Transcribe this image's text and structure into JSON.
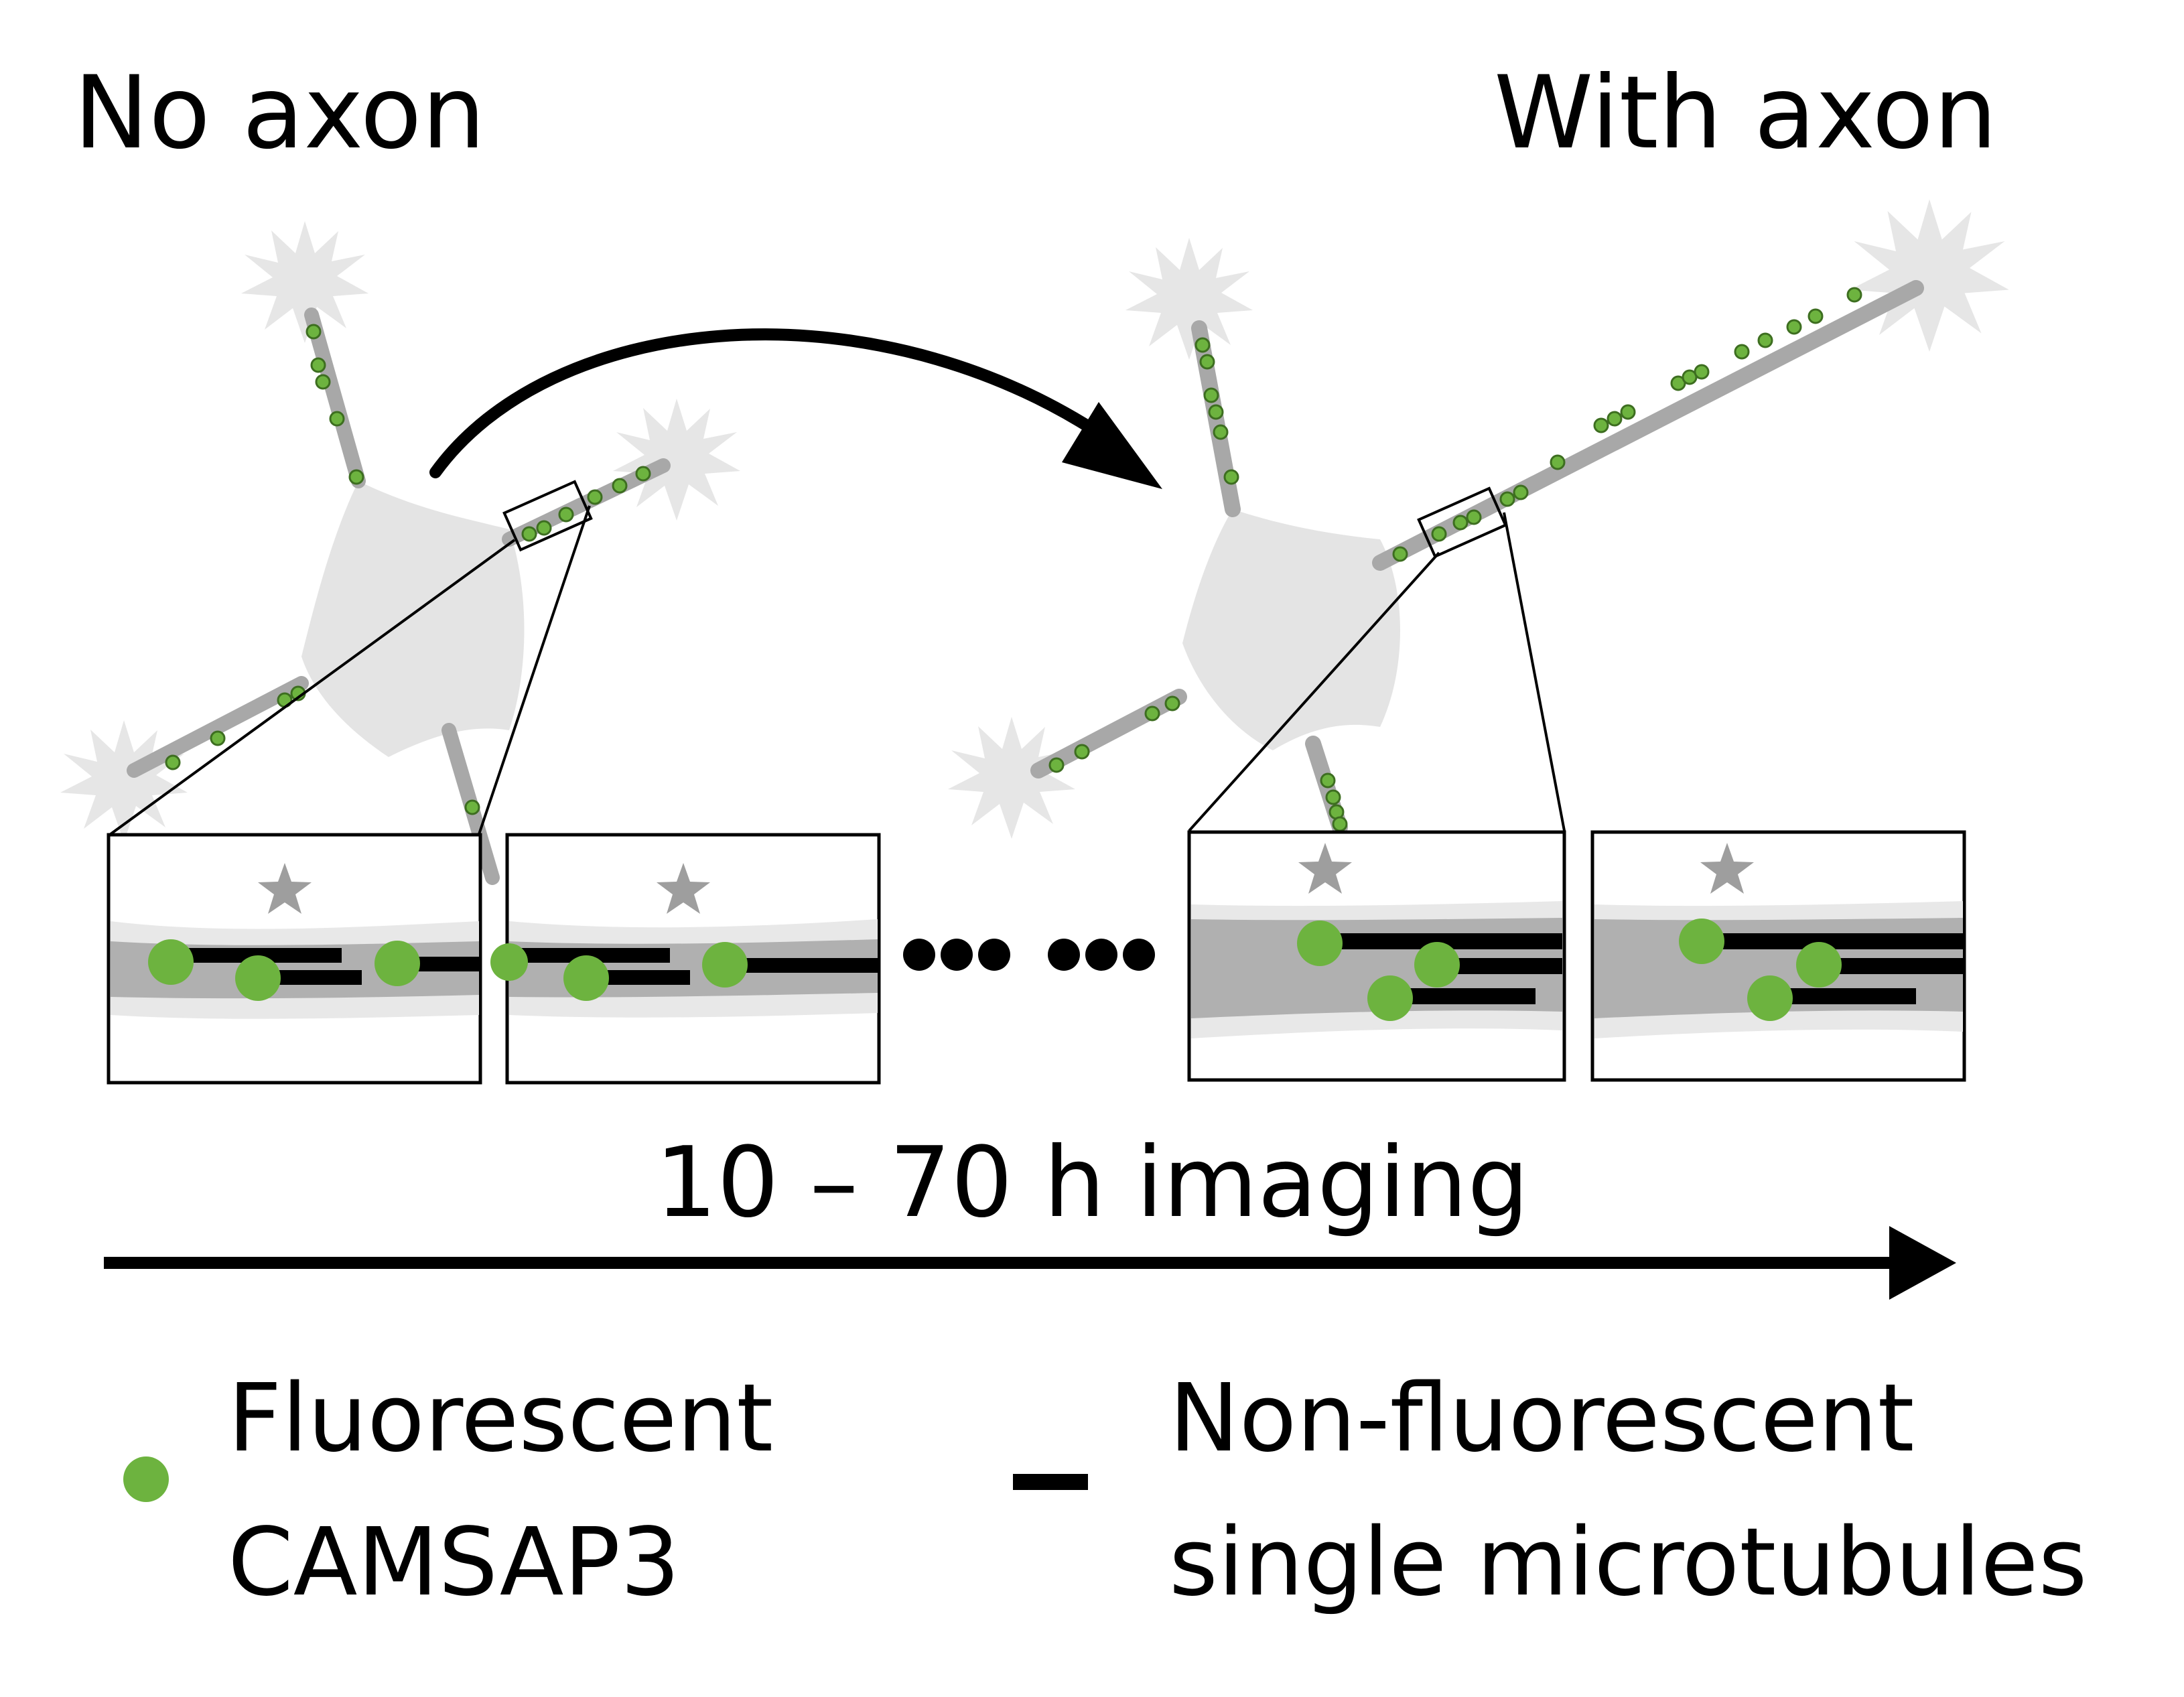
{
  "labels": {
    "left_title": "No axon",
    "right_title": "With axon",
    "timeline": "10 – 70 h imaging",
    "legend_fluor_line1": "Fluorescent",
    "legend_fluor_line2": "CAMSAP3",
    "legend_mt_line1": "Non-fluorescent",
    "legend_mt_line2": "single microtubules"
  },
  "colors": {
    "camsap3": "#6db33f",
    "microtubule": "#000000",
    "cell": "#e4e4e4",
    "neurite": "#a8a8a8",
    "star": "#9e9e9e"
  },
  "icons": {
    "marker": "star-icon",
    "ellipsis": "ellipsis-dots"
  }
}
